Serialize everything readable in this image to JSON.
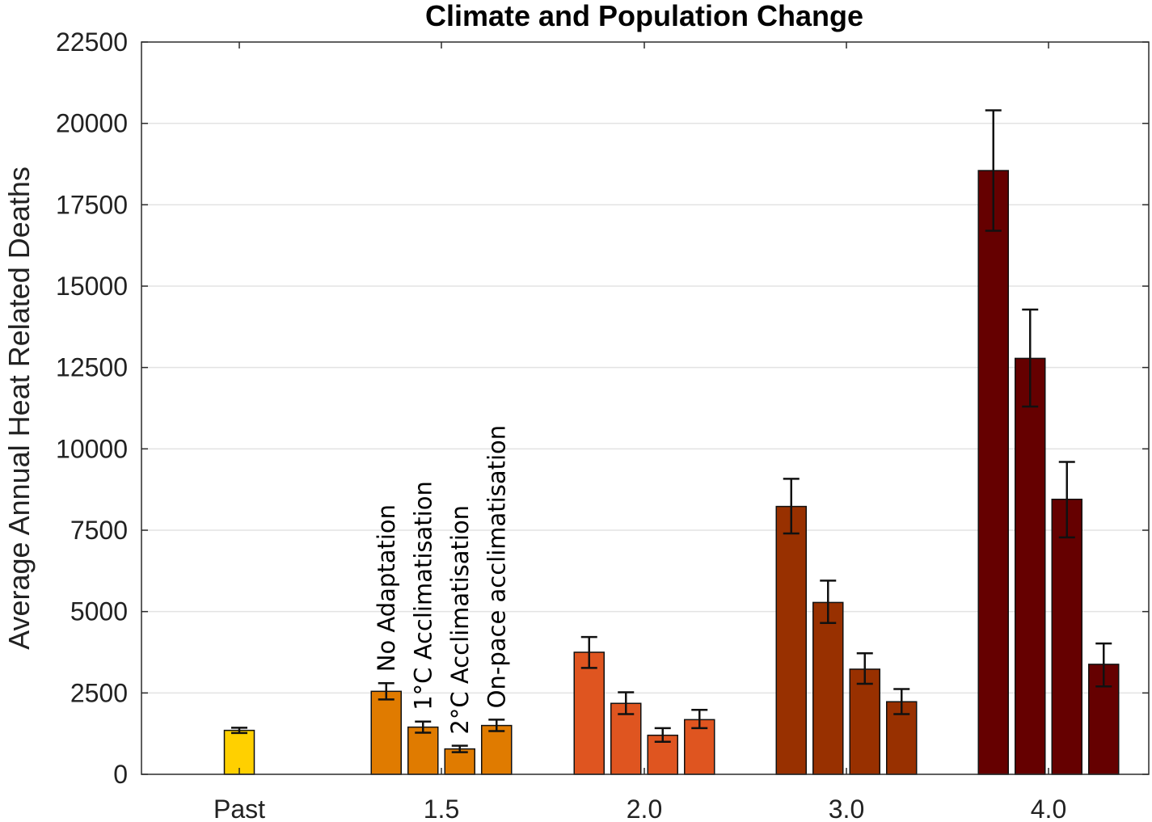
{
  "chart_data": {
    "type": "bar",
    "title": "Climate and Population Change",
    "ylabel": "Average Annual Heat Related Deaths",
    "xlabel": "",
    "ylim": [
      0,
      22500
    ],
    "yticks": [
      0,
      2500,
      5000,
      7500,
      10000,
      12500,
      15000,
      17500,
      20000,
      22500
    ],
    "categories": [
      "Past",
      "1.5",
      "2.0",
      "3.0",
      "4.0"
    ],
    "grid": true,
    "series_labels_annotation": [
      "No Adaptation",
      "1°C Acclimatisation",
      "2°C Acclimatisation",
      "On-pace acclimatisation"
    ],
    "groups": [
      {
        "category": "Past",
        "color": "#ffd000",
        "bars": [
          {
            "value": 1350,
            "err_low": 1270,
            "err_high": 1430
          }
        ]
      },
      {
        "category": "1.5",
        "color": "#e07b00",
        "bars": [
          {
            "series": "No Adaptation",
            "value": 2550,
            "err_low": 2300,
            "err_high": 2800
          },
          {
            "series": "1°C Acclimatisation",
            "value": 1450,
            "err_low": 1280,
            "err_high": 1620
          },
          {
            "series": "2°C Acclimatisation",
            "value": 780,
            "err_low": 680,
            "err_high": 880
          },
          {
            "series": "On-pace acclimatisation",
            "value": 1500,
            "err_low": 1330,
            "err_high": 1680
          }
        ]
      },
      {
        "category": "2.0",
        "color": "#df5520",
        "bars": [
          {
            "series": "No Adaptation",
            "value": 3750,
            "err_low": 3270,
            "err_high": 4220
          },
          {
            "series": "1°C Acclimatisation",
            "value": 2180,
            "err_low": 1850,
            "err_high": 2520
          },
          {
            "series": "2°C Acclimatisation",
            "value": 1200,
            "err_low": 1000,
            "err_high": 1420
          },
          {
            "series": "On-pace acclimatisation",
            "value": 1680,
            "err_low": 1420,
            "err_high": 1980
          }
        ]
      },
      {
        "category": "3.0",
        "color": "#983000",
        "bars": [
          {
            "series": "No Adaptation",
            "value": 8230,
            "err_low": 7400,
            "err_high": 9080
          },
          {
            "series": "1°C Acclimatisation",
            "value": 5280,
            "err_low": 4650,
            "err_high": 5950
          },
          {
            "series": "2°C Acclimatisation",
            "value": 3230,
            "err_low": 2780,
            "err_high": 3720
          },
          {
            "series": "On-pace acclimatisation",
            "value": 2230,
            "err_low": 1850,
            "err_high": 2620
          }
        ]
      },
      {
        "category": "4.0",
        "color": "#650000",
        "bars": [
          {
            "series": "No Adaptation",
            "value": 18550,
            "err_low": 16700,
            "err_high": 20400
          },
          {
            "series": "1°C Acclimatisation",
            "value": 12780,
            "err_low": 11300,
            "err_high": 14280
          },
          {
            "series": "2°C Acclimatisation",
            "value": 8450,
            "err_low": 7280,
            "err_high": 9600
          },
          {
            "series": "On-pace acclimatisation",
            "value": 3380,
            "err_low": 2700,
            "err_high": 4020
          }
        ]
      }
    ]
  }
}
